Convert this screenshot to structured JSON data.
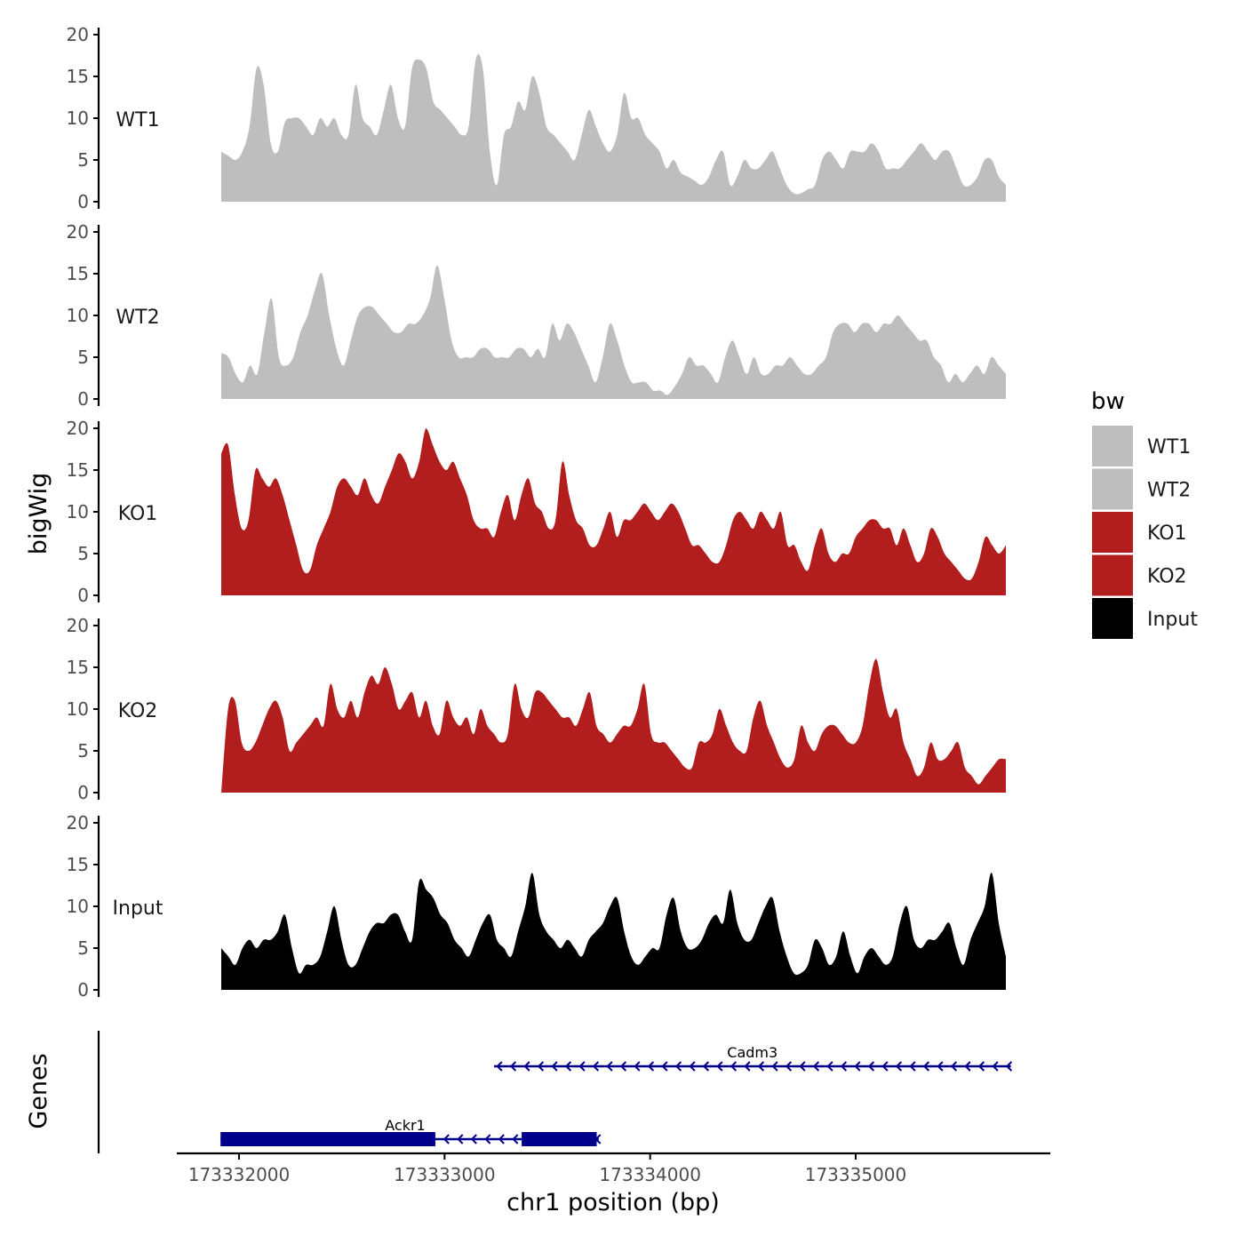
{
  "colors": {
    "WT": "#bebebe",
    "KO": "#b21e1e",
    "Input": "#000000",
    "gene": "#00008b",
    "axis": "#000000",
    "tick_text": "#4d4d4d"
  },
  "chart_data": {
    "type": "area",
    "title": "",
    "xlabel": "chr1 position (bp)",
    "ylabel": "bigWig",
    "genes_label": "Genes",
    "legend_title": "bw",
    "legend_position": "right",
    "xlim": [
      173331700,
      173335950
    ],
    "ylim": [
      0,
      20
    ],
    "y_ticks": [
      0,
      5,
      10,
      15,
      20
    ],
    "x_ticks": [
      173332000,
      173333000,
      173334000,
      173335000
    ],
    "x_tick_labels": [
      "173332000",
      "173333000",
      "173334000",
      "173335000"
    ],
    "x_start": 173331915,
    "x_end": 173335735,
    "legend": [
      {
        "label": "WT1",
        "color": "#bebebe"
      },
      {
        "label": "WT2",
        "color": "#bebebe"
      },
      {
        "label": "KO1",
        "color": "#b21e1e"
      },
      {
        "label": "KO2",
        "color": "#b21e1e"
      },
      {
        "label": "Input",
        "color": "#000000"
      }
    ],
    "series": [
      {
        "name": "WT1",
        "color": "#bebebe",
        "values": [
          6,
          5.5,
          5,
          6,
          9,
          16,
          14,
          7,
          6,
          9.5,
          10,
          10,
          9,
          8,
          10,
          9,
          10,
          8,
          8,
          14,
          10,
          9,
          8,
          11,
          14,
          10,
          9,
          16,
          17,
          16,
          12,
          11,
          10,
          9,
          8,
          9,
          17,
          16,
          6,
          2,
          8,
          9,
          12,
          11,
          15,
          13,
          9,
          8,
          7,
          6,
          5,
          8,
          11,
          9,
          7,
          6,
          8,
          13,
          10,
          10,
          8,
          7,
          6,
          4,
          5,
          3.5,
          3,
          2.5,
          2,
          3,
          5,
          6,
          2,
          3,
          5,
          4,
          4,
          5,
          6,
          4,
          2,
          1,
          1,
          1.5,
          2,
          5,
          6,
          5,
          4,
          6,
          6,
          6,
          7,
          6,
          4,
          4,
          4,
          5,
          6,
          7,
          6,
          5,
          6,
          6,
          4,
          2,
          2,
          3,
          5,
          5,
          3,
          2
        ]
      },
      {
        "name": "WT2",
        "color": "#bebebe",
        "values": [
          5.5,
          5,
          3,
          2,
          4,
          3,
          8,
          12,
          5,
          4,
          5,
          8,
          10,
          13,
          15,
          10,
          6,
          4,
          7,
          10,
          11,
          11,
          10,
          9,
          8,
          8,
          9,
          9,
          10,
          12,
          16,
          12,
          7,
          5,
          5,
          5,
          6,
          6,
          5,
          5,
          5,
          6,
          6,
          5,
          6,
          5,
          9,
          7,
          9,
          8,
          6,
          4,
          2,
          5,
          9,
          7,
          4,
          2,
          2,
          2,
          1,
          1,
          0.5,
          1.5,
          3,
          5,
          4,
          4,
          3,
          2,
          5,
          7,
          5,
          3,
          5,
          3,
          3,
          4,
          4,
          5,
          4,
          3,
          3,
          4,
          5,
          8,
          9,
          9,
          8,
          9,
          9,
          8,
          9,
          9,
          10,
          9,
          8,
          7,
          7,
          5,
          4,
          2,
          3,
          2,
          3,
          4,
          3,
          5,
          4,
          3
        ]
      },
      {
        "name": "KO1",
        "color": "#b21e1e",
        "values": [
          17,
          18,
          12,
          8,
          9,
          15,
          14,
          13,
          14,
          12,
          9,
          6,
          3,
          3,
          6,
          8,
          10,
          13,
          14,
          13,
          12,
          14,
          12,
          11,
          13,
          15,
          17,
          16,
          14,
          16,
          20,
          18,
          16,
          15,
          16,
          14,
          12,
          9,
          8,
          8,
          7,
          10,
          12,
          9,
          12,
          14,
          11,
          10,
          8,
          9,
          16,
          12,
          9,
          8,
          6,
          6,
          8,
          10,
          7,
          9,
          9,
          10,
          11,
          10,
          9,
          10,
          11,
          10,
          8,
          6,
          6,
          5,
          4,
          4,
          6,
          9,
          10,
          9,
          8,
          10,
          9,
          8,
          10,
          6,
          6,
          4,
          3,
          6,
          8,
          5,
          4,
          5,
          5,
          7,
          8,
          9,
          9,
          8,
          8,
          6,
          8,
          6,
          4,
          5,
          8,
          7,
          5,
          4,
          3,
          2,
          2,
          4,
          7,
          6,
          5,
          6
        ]
      },
      {
        "name": "KO2",
        "color": "#b21e1e",
        "values": [
          0,
          10,
          11,
          6,
          5,
          6,
          8,
          10,
          11,
          9,
          5,
          6,
          7,
          8,
          9,
          8,
          13,
          10,
          9,
          11,
          9,
          12,
          14,
          13,
          15,
          13,
          10,
          11,
          12,
          9,
          11,
          8,
          7,
          11,
          9,
          8,
          9,
          7,
          10,
          8,
          7,
          6,
          7,
          13,
          10,
          9,
          12,
          12,
          11,
          10,
          9,
          9,
          8,
          10,
          12,
          8,
          7,
          6,
          7,
          8,
          8,
          10,
          13,
          7,
          6,
          6,
          5,
          4,
          3,
          3,
          6,
          6,
          7,
          10,
          8,
          6,
          5,
          5,
          9,
          11,
          8,
          6,
          4,
          3,
          4,
          8,
          6,
          5,
          7,
          8,
          8,
          7,
          6,
          6,
          8,
          13,
          16,
          12,
          9,
          10,
          6,
          4,
          2,
          3,
          6,
          4,
          4,
          5,
          6,
          3,
          2,
          1,
          2,
          3,
          4,
          4
        ]
      },
      {
        "name": "Input",
        "color": "#000000",
        "values": [
          5,
          4,
          3,
          5,
          6,
          5,
          6,
          6,
          7,
          9,
          5,
          2,
          3,
          3,
          4,
          7,
          10,
          6,
          3,
          3,
          5,
          7,
          8,
          8,
          9,
          9,
          7,
          6,
          13,
          12,
          11,
          9,
          8,
          6,
          5,
          4,
          6,
          8,
          9,
          6,
          5,
          4,
          7,
          10,
          14,
          9,
          7,
          6,
          5,
          6,
          5,
          4,
          6,
          7,
          8,
          10,
          11,
          7,
          4,
          3,
          4,
          5,
          5,
          9,
          11,
          7,
          5,
          5,
          6,
          8,
          9,
          8,
          12,
          8,
          6,
          6,
          8,
          10,
          11,
          7,
          4,
          2,
          2,
          3,
          6,
          5,
          3,
          4,
          7,
          4,
          2,
          4,
          5,
          4,
          3,
          4,
          8,
          10,
          6,
          5,
          6,
          6,
          7,
          8,
          5,
          3,
          6,
          8,
          10,
          14,
          8,
          4
        ]
      }
    ],
    "genes": [
      {
        "name": "Cadm3",
        "start": 173333240,
        "end": 173335755,
        "strand": "-",
        "row": 1,
        "exons": []
      },
      {
        "name": "Ackr1",
        "start": 173331910,
        "end": 173333750,
        "strand": "-",
        "row": 2,
        "exons": [
          [
            173331910,
            173332955
          ],
          [
            173333375,
            173333740
          ]
        ]
      }
    ]
  }
}
